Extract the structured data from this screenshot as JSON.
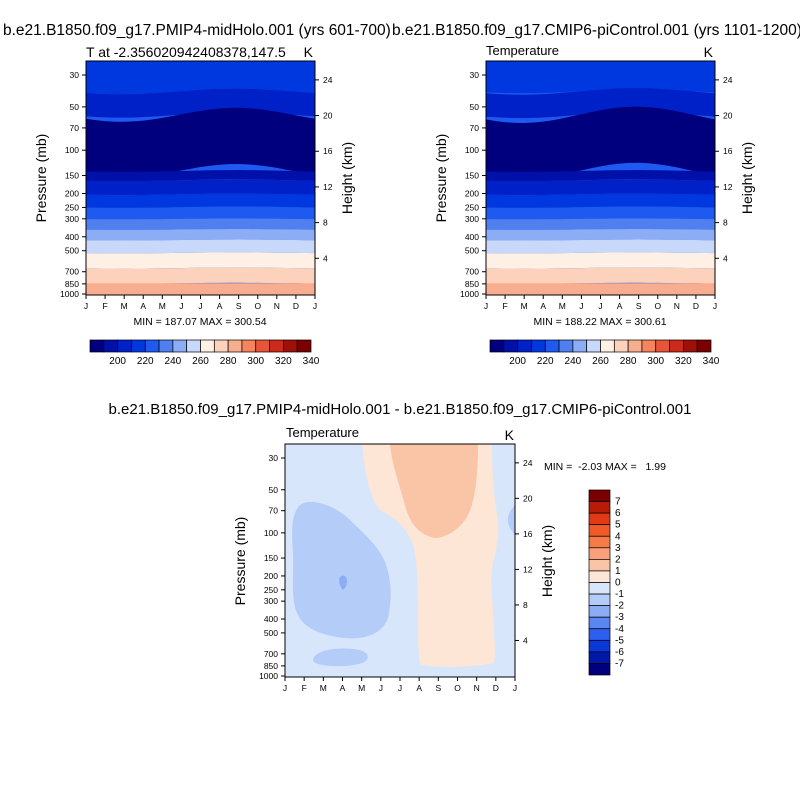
{
  "chart_data": [
    {
      "type": "contour",
      "panel_title": "b.e21.B1850.f09_g17.PMIP4-midHolo.001 (yrs 601-700)",
      "left_label": "T at -2.356020942408378,147.5",
      "right_label": "K",
      "xlabel": "",
      "ylabel": "Pressure (mb)",
      "y2label": "Height (km)",
      "x_ticks": [
        "J",
        "F",
        "M",
        "A",
        "M",
        "J",
        "J",
        "A",
        "S",
        "O",
        "N",
        "D",
        "J"
      ],
      "y_ticks": [
        "30",
        "50",
        "70",
        "100",
        "150",
        "200",
        "250",
        "300",
        "400",
        "500",
        "700",
        "850",
        "1000"
      ],
      "y2_ticks": [
        "24",
        "20",
        "16",
        "12",
        "8",
        "4"
      ],
      "stats": "MIN = 187.07 MAX = 300.54",
      "legend": {
        "tick_labels": [
          "200",
          "220",
          "240",
          "260",
          "280",
          "300",
          "320",
          "340"
        ],
        "colors": [
          "#00007f",
          "#0010a8",
          "#0020c8",
          "#0038e0",
          "#1e5af0",
          "#5080f0",
          "#8cacf5",
          "#c8d8fa",
          "#fff0e6",
          "#fcd2bd",
          "#f8ae8e",
          "#f3845e",
          "#e8543a",
          "#cc2a1a",
          "#9e1008",
          "#7a0000"
        ]
      },
      "bands": [
        {
          "color": "#1e5af0",
          "top": 10,
          "bottom": 10
        },
        {
          "color": "#0038e0",
          "top": 10,
          "bottom": 11
        },
        {
          "color": "#0020c8",
          "top": 11,
          "bottom": 10
        },
        {
          "color": "#00007f",
          "top": 10,
          "bottom": 11
        },
        {
          "color": "#0010a8",
          "top": 11,
          "bottom": 11
        },
        {
          "color": "#0020c8",
          "top": 11,
          "bottom": 11
        },
        {
          "color": "#0038e0",
          "top": 11,
          "bottom": 11
        },
        {
          "color": "#1e5af0",
          "top": 11,
          "bottom": 11
        },
        {
          "color": "#5080f0",
          "top": 11,
          "bottom": 11
        },
        {
          "color": "#8cacf5",
          "top": 11,
          "bottom": 11
        },
        {
          "color": "#c8d8fa",
          "top": 11,
          "bottom": 11
        },
        {
          "color": "#fff0e6",
          "top": 11,
          "bottom": 11
        },
        {
          "color": "#fcd2bd",
          "top": 11,
          "bottom": 11
        },
        {
          "color": "#f8ae8e",
          "top": 11,
          "bottom": 11
        }
      ]
    },
    {
      "type": "contour",
      "panel_title": "b.e21.B1850.f09_g17.CMIP6-piControl.001 (yrs 1101-1200)",
      "left_label": "Temperature",
      "right_label": "K",
      "xlabel": "",
      "ylabel": "Pressure (mb)",
      "y2label": "Height (km)",
      "x_ticks": [
        "J",
        "F",
        "M",
        "A",
        "M",
        "J",
        "J",
        "A",
        "S",
        "O",
        "N",
        "D",
        "J"
      ],
      "y_ticks": [
        "30",
        "50",
        "70",
        "100",
        "150",
        "200",
        "250",
        "300",
        "400",
        "500",
        "700",
        "850",
        "1000"
      ],
      "y2_ticks": [
        "24",
        "20",
        "16",
        "12",
        "8",
        "4"
      ],
      "stats": "MIN = 188.22 MAX = 300.61",
      "legend": {
        "tick_labels": [
          "200",
          "220",
          "240",
          "260",
          "280",
          "300",
          "320",
          "340"
        ],
        "colors": [
          "#00007f",
          "#0010a8",
          "#0020c8",
          "#0038e0",
          "#1e5af0",
          "#5080f0",
          "#8cacf5",
          "#c8d8fa",
          "#fff0e6",
          "#fcd2bd",
          "#f8ae8e",
          "#f3845e",
          "#e8543a",
          "#cc2a1a",
          "#9e1008",
          "#7a0000"
        ]
      }
    },
    {
      "type": "contour",
      "panel_title": "b.e21.B1850.f09_g17.PMIP4-midHolo.001 - b.e21.B1850.f09_g17.CMIP6-piControl.001",
      "left_label": "Temperature",
      "right_label": "K",
      "xlabel": "",
      "ylabel": "Pressure (mb)",
      "y2label": "Height (km)",
      "x_ticks": [
        "J",
        "F",
        "M",
        "A",
        "M",
        "J",
        "J",
        "A",
        "S",
        "O",
        "N",
        "D",
        "J"
      ],
      "y_ticks": [
        "30",
        "50",
        "70",
        "100",
        "150",
        "200",
        "250",
        "300",
        "400",
        "500",
        "700",
        "850",
        "1000"
      ],
      "y2_ticks": [
        "24",
        "20",
        "16",
        "12",
        "8",
        "4"
      ],
      "stats": "MIN =  -2.03 MAX =   1.99",
      "legend": {
        "tick_labels": [
          "7",
          "6",
          "5",
          "4",
          "3",
          "2",
          "1",
          "0",
          "-1",
          "-2",
          "-3",
          "-4",
          "-5",
          "-6",
          "-7"
        ],
        "colors": [
          "#7a0000",
          "#b81c08",
          "#e03a14",
          "#f05a28",
          "#f47a48",
          "#f7a07a",
          "#fac4a6",
          "#fde6d6",
          "#d8e6fb",
          "#b4ccf8",
          "#8cacf5",
          "#5a86f2",
          "#2c5ef0",
          "#0838d8",
          "#0018a8",
          "#00007f"
        ]
      }
    }
  ]
}
